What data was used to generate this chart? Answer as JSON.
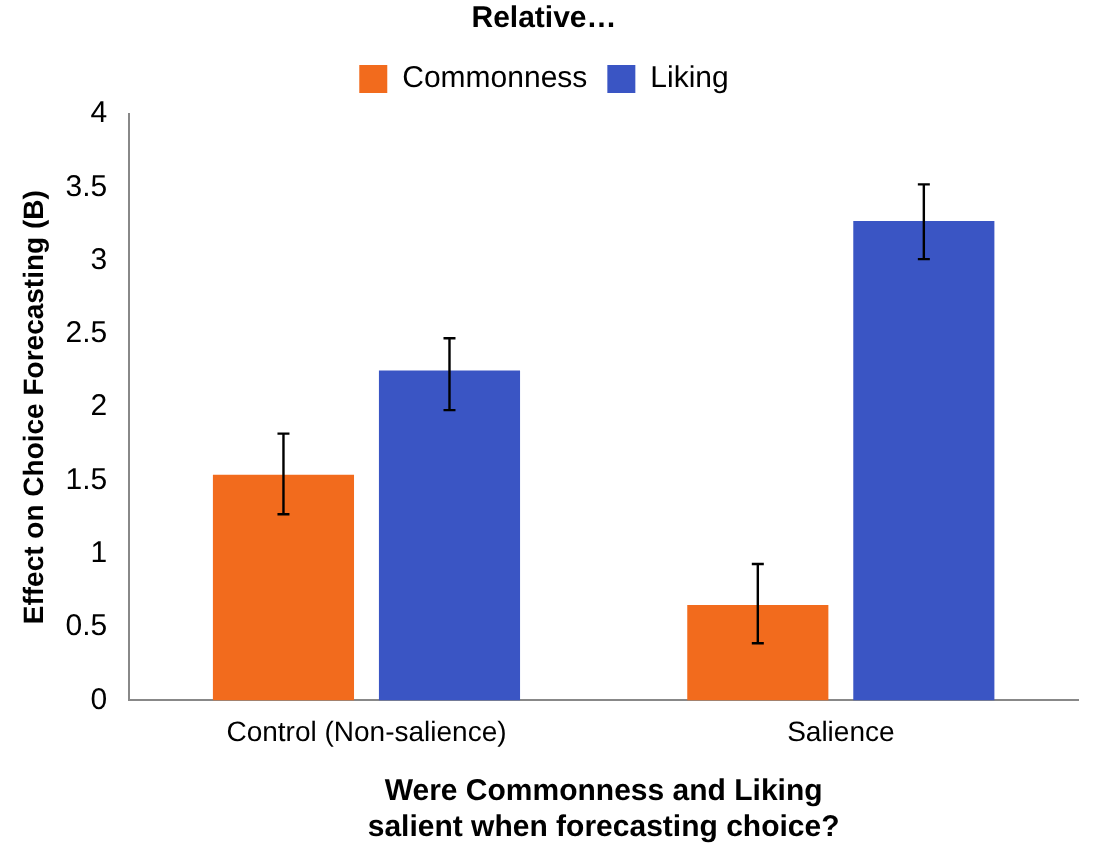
{
  "chart_data": {
    "type": "bar",
    "legend_title": "Relative…",
    "categories": [
      "Control (Non-salience)",
      "Salience"
    ],
    "series": [
      {
        "name": "Commonness",
        "color": "#f26b1d",
        "values": [
          1.54,
          0.65
        ],
        "errors": [
          [
            1.27,
            1.82
          ],
          [
            0.39,
            0.93
          ]
        ]
      },
      {
        "name": "Liking",
        "color": "#3a55c4",
        "values": [
          2.25,
          3.27
        ],
        "errors": [
          [
            1.98,
            2.47
          ],
          [
            3.01,
            3.52
          ]
        ]
      }
    ],
    "ylabel": "Effect on Choice Forecasting (B)",
    "xlabel": "Were Commonness and Liking\nsalient when forecasting choice?",
    "ylim": [
      0,
      4
    ],
    "yticks": [
      0,
      0.5,
      1,
      1.5,
      2,
      2.5,
      3,
      3.5,
      4
    ],
    "grid": false,
    "legend": "top"
  }
}
